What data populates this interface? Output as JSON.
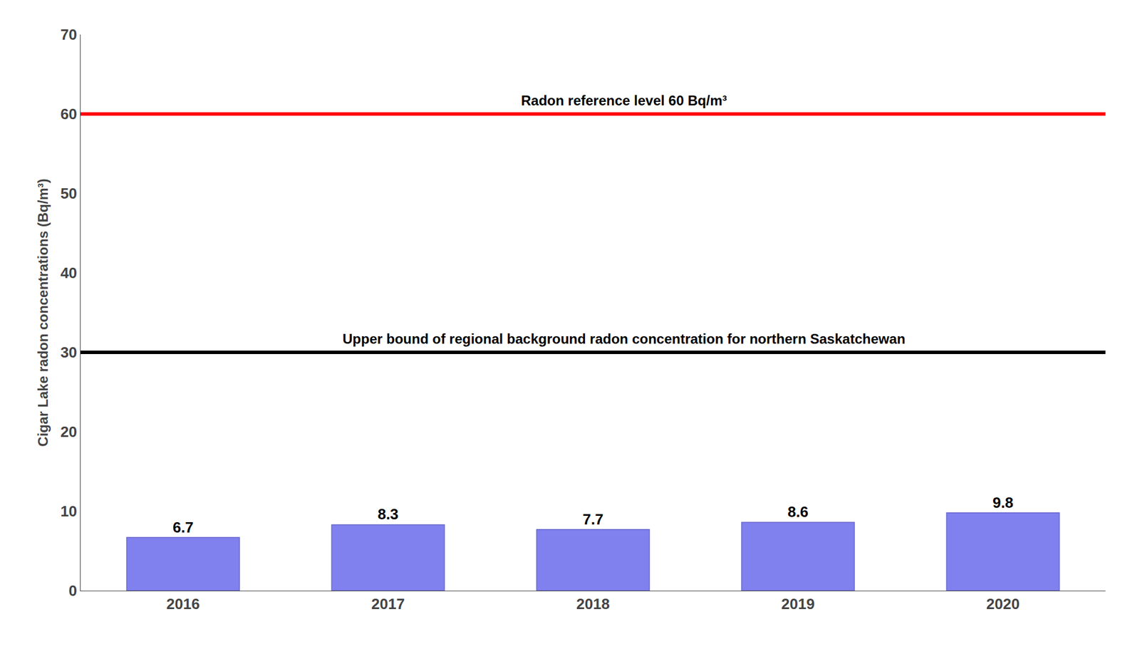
{
  "chart_data": {
    "type": "bar",
    "categories": [
      "2016",
      "2017",
      "2018",
      "2019",
      "2020"
    ],
    "values": [
      6.7,
      8.3,
      7.7,
      8.6,
      9.8
    ],
    "color": "#8080ee",
    "ylabel": "Cigar Lake radon concentrations (Bq/m³)",
    "ylim": [
      0,
      70
    ],
    "yticks": [
      0,
      10,
      20,
      30,
      40,
      50,
      60,
      70
    ],
    "grid": false,
    "data_labels": true,
    "reference_lines": [
      {
        "value": 60,
        "label": "Radon reference level 60 Bq/m³",
        "color": "#ff0000"
      },
      {
        "value": 30,
        "label": "Upper bound of regional background radon concentration for northern Saskatchewan",
        "color": "#000000"
      }
    ]
  }
}
